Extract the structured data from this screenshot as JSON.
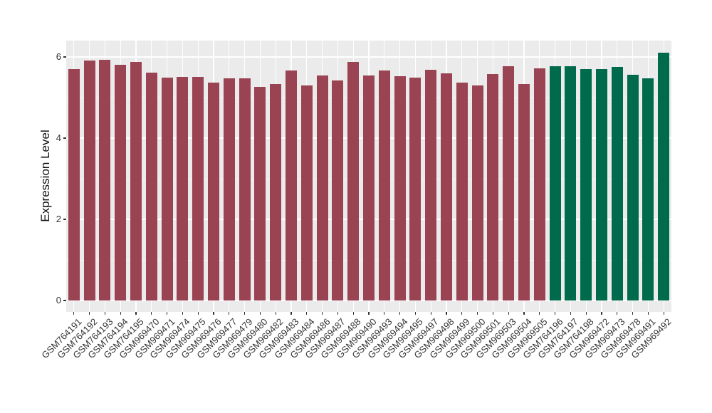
{
  "figure": {
    "background": "#ffffff",
    "panel_background": "#ebebeb",
    "grid_color": "#ffffff",
    "axis_text_color": "#333333",
    "axis_title_color": "#111111"
  },
  "chart_data": {
    "type": "bar",
    "title": "",
    "xlabel": "",
    "ylabel": "Expression Level",
    "legend": "none",
    "grid": true,
    "x_tick_rotation": -45,
    "ylim": [
      -0.3,
      6.4
    ],
    "yticks": [
      0,
      2,
      4,
      6
    ],
    "yminor": [
      1,
      3,
      5
    ],
    "categories": [
      "GSM764191",
      "GSM764192",
      "GSM764193",
      "GSM764194",
      "GSM764195",
      "GSM969470",
      "GSM969471",
      "GSM969474",
      "GSM969475",
      "GSM969476",
      "GSM969477",
      "GSM969479",
      "GSM969480",
      "GSM969482",
      "GSM969483",
      "GSM969484",
      "GSM969486",
      "GSM969487",
      "GSM969488",
      "GSM969490",
      "GSM969493",
      "GSM969494",
      "GSM969495",
      "GSM969497",
      "GSM969498",
      "GSM969499",
      "GSM969500",
      "GSM969501",
      "GSM969503",
      "GSM969504",
      "GSM969505",
      "GSM764196",
      "GSM764197",
      "GSM764198",
      "GSM969472",
      "GSM969473",
      "GSM969478",
      "GSM969491",
      "GSM969492"
    ],
    "values": [
      5.7,
      5.92,
      5.93,
      5.8,
      5.87,
      5.62,
      5.49,
      5.51,
      5.51,
      5.37,
      5.47,
      5.47,
      5.26,
      5.33,
      5.66,
      5.3,
      5.54,
      5.43,
      5.87,
      5.54,
      5.66,
      5.52,
      5.49,
      5.69,
      5.59,
      5.36,
      5.29,
      5.58,
      5.77,
      5.33,
      5.72,
      5.77,
      5.77,
      5.7,
      5.7,
      5.75,
      5.56,
      5.48,
      6.11
    ],
    "groups": [
      "group1",
      "group1",
      "group1",
      "group1",
      "group1",
      "group1",
      "group1",
      "group1",
      "group1",
      "group1",
      "group1",
      "group1",
      "group1",
      "group1",
      "group1",
      "group1",
      "group1",
      "group1",
      "group1",
      "group1",
      "group1",
      "group1",
      "group1",
      "group1",
      "group1",
      "group1",
      "group1",
      "group1",
      "group1",
      "group1",
      "group1",
      "group2",
      "group2",
      "group2",
      "group2",
      "group2",
      "group2",
      "group2",
      "group2"
    ],
    "group_colors": {
      "group1": "#9a4453",
      "group2": "#006b4c"
    }
  }
}
